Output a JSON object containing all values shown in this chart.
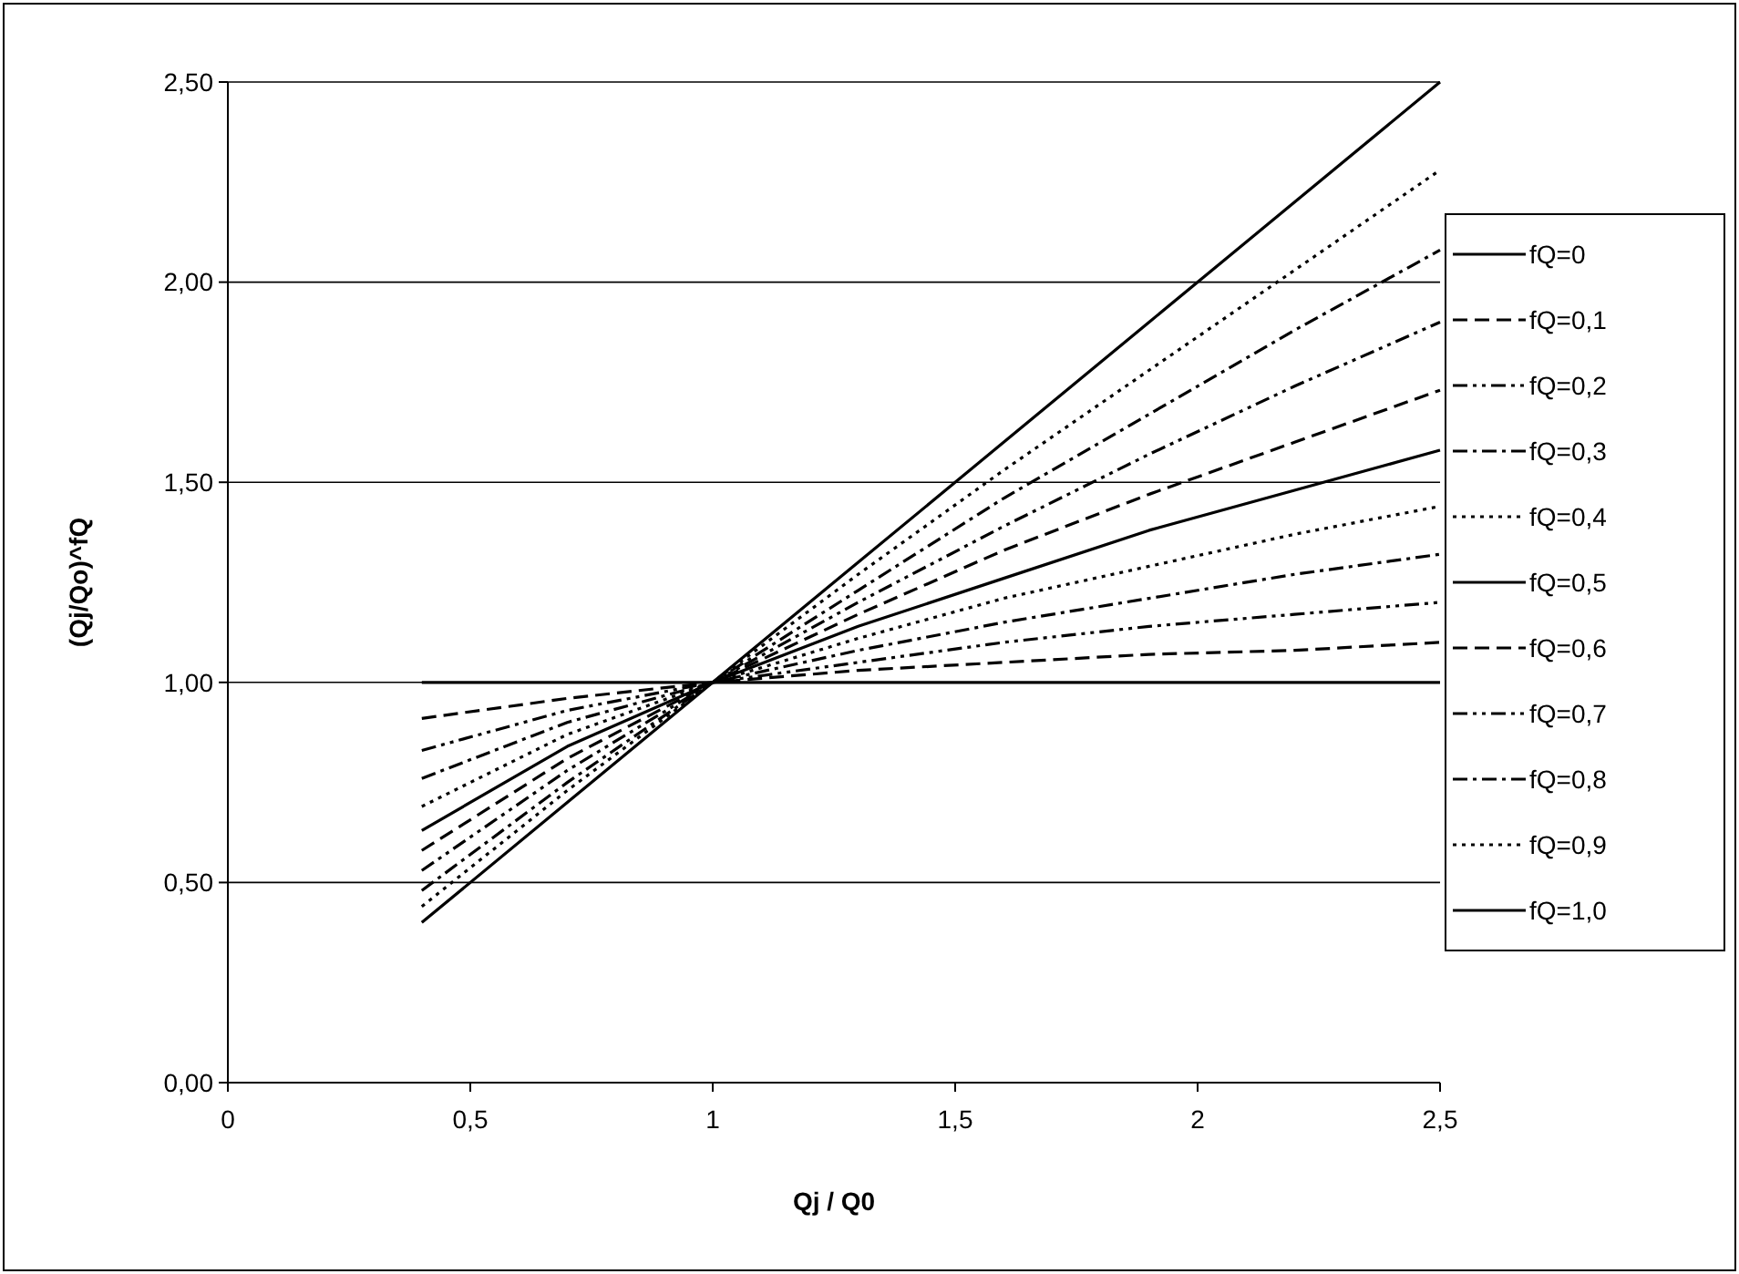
{
  "chart_data": {
    "type": "line",
    "xlabel": "Qj / Q0",
    "ylabel": "(Qj/Qo)^fQ",
    "x": [
      0.4,
      0.7,
      1,
      1.3,
      1.6,
      1.9,
      2.2,
      2.5
    ],
    "xlim": [
      0,
      2.5
    ],
    "xticks": [
      {
        "value": 0,
        "label": "0"
      },
      {
        "value": 0.5,
        "label": "0,5"
      },
      {
        "value": 1,
        "label": "1"
      },
      {
        "value": 1.5,
        "label": "1,5"
      },
      {
        "value": 2,
        "label": "2"
      },
      {
        "value": 2.5,
        "label": "2,5"
      }
    ],
    "ylim": [
      0,
      2.5
    ],
    "yticks": [
      {
        "value": 0,
        "label": "0,00"
      },
      {
        "value": 0.5,
        "label": "0,50"
      },
      {
        "value": 1,
        "label": "1,00"
      },
      {
        "value": 1.5,
        "label": "1,50"
      },
      {
        "value": 2,
        "label": "2,00"
      },
      {
        "value": 2.5,
        "label": "2,50"
      }
    ],
    "grid": "y",
    "legend": "right",
    "series": [
      {
        "name": "fQ=0",
        "color": "#000000",
        "line_style": "solid",
        "values": [
          1,
          1,
          1,
          1,
          1,
          1,
          1,
          1
        ]
      },
      {
        "name": "fQ=0,1",
        "color": "#000000",
        "line_style": "dashed",
        "values": [
          0.91,
          0.96,
          1,
          1.03,
          1.05,
          1.07,
          1.08,
          1.1
        ]
      },
      {
        "name": "fQ=0,2",
        "color": "#000000",
        "line_style": "dashdotdot",
        "values": [
          0.83,
          0.93,
          1,
          1.05,
          1.1,
          1.14,
          1.17,
          1.2
        ]
      },
      {
        "name": "fQ=0,3",
        "color": "#000000",
        "line_style": "dashdot",
        "values": [
          0.76,
          0.9,
          1,
          1.08,
          1.15,
          1.21,
          1.27,
          1.32
        ]
      },
      {
        "name": "fQ=0,4",
        "color": "#000000",
        "line_style": "dotted",
        "values": [
          0.69,
          0.87,
          1,
          1.11,
          1.21,
          1.29,
          1.37,
          1.44
        ]
      },
      {
        "name": "fQ=0,5",
        "color": "#000000",
        "line_style": "solid",
        "values": [
          0.63,
          0.84,
          1,
          1.14,
          1.26,
          1.38,
          1.48,
          1.58
        ]
      },
      {
        "name": "fQ=0,6",
        "color": "#000000",
        "line_style": "dashed",
        "values": [
          0.58,
          0.81,
          1,
          1.17,
          1.33,
          1.47,
          1.6,
          1.73
        ]
      },
      {
        "name": "fQ=0,7",
        "color": "#000000",
        "line_style": "dashdotdot",
        "values": [
          0.53,
          0.78,
          1,
          1.2,
          1.39,
          1.57,
          1.74,
          1.9
        ]
      },
      {
        "name": "fQ=0,8",
        "color": "#000000",
        "line_style": "dashdot",
        "values": [
          0.48,
          0.75,
          1,
          1.23,
          1.46,
          1.67,
          1.88,
          2.08
        ]
      },
      {
        "name": "fQ=0,9",
        "color": "#000000",
        "line_style": "dotted",
        "values": [
          0.44,
          0.73,
          1,
          1.27,
          1.53,
          1.78,
          2.03,
          2.28
        ]
      },
      {
        "name": "fQ=1,0",
        "color": "#000000",
        "line_style": "solid",
        "values": [
          0.4,
          0.7,
          1,
          1.3,
          1.6,
          1.9,
          2.2,
          2.5
        ]
      }
    ]
  }
}
